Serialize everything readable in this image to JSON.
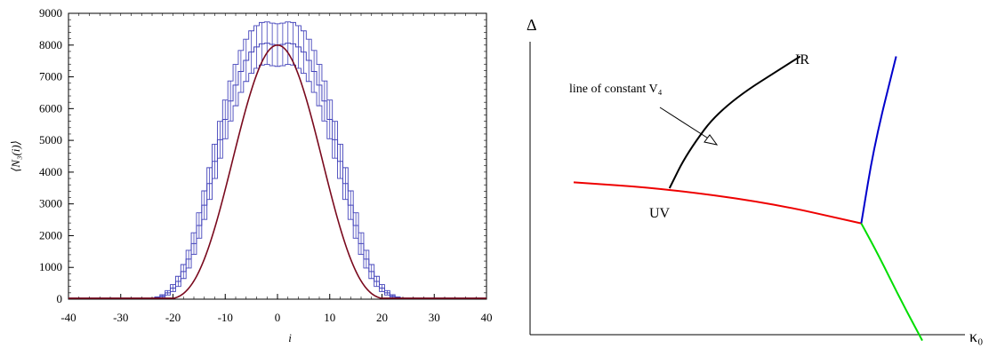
{
  "chart_data": [
    {
      "type": "histogram",
      "xlabel": "i",
      "ylabel": "⟨N₃(i)⟩",
      "xlim": [
        -40,
        40
      ],
      "ylim": [
        0,
        9000
      ],
      "x_ticks": [
        -40,
        -30,
        -20,
        -10,
        0,
        10,
        20,
        30,
        40
      ],
      "y_ticks": [
        0,
        1000,
        2000,
        3000,
        4000,
        5000,
        6000,
        7000,
        8000,
        9000
      ],
      "grid": false,
      "colors": {
        "histogram": "#4444bb",
        "fit": "#7a0a1e"
      },
      "series": [
        {
          "kind": "histogram-with-errorbars",
          "x": [
            -40,
            -39,
            -38,
            -37,
            -36,
            -35,
            -34,
            -33,
            -32,
            -31,
            -30,
            -29,
            -28,
            -27,
            -26,
            -25,
            -24,
            -23,
            -22,
            -21,
            -20,
            -19,
            -18,
            -17,
            -16,
            -15,
            -14,
            -13,
            -12,
            -11,
            -10,
            -9,
            -8,
            -7,
            -6,
            -5,
            -4,
            -3,
            -2,
            -1,
            0,
            1,
            2,
            3,
            4,
            5,
            6,
            7,
            8,
            9,
            10,
            11,
            12,
            13,
            14,
            15,
            16,
            17,
            18,
            19,
            20,
            21,
            22,
            23,
            24,
            25,
            26,
            27,
            28,
            29,
            30,
            31,
            32,
            33,
            34,
            35,
            36,
            37,
            38,
            39,
            40
          ],
          "values": [
            30,
            30,
            30,
            30,
            30,
            30,
            30,
            30,
            30,
            30,
            30,
            30,
            30,
            30,
            30,
            30,
            30,
            50,
            100,
            200,
            350,
            560,
            870,
            1260,
            1750,
            2320,
            2960,
            3640,
            4340,
            5020,
            5660,
            6240,
            6740,
            7170,
            7520,
            7780,
            7940,
            8040,
            8060,
            8020,
            8000,
            8020,
            8060,
            8040,
            7940,
            7780,
            7520,
            7170,
            6740,
            6240,
            5660,
            5020,
            4340,
            3640,
            2960,
            2320,
            1750,
            1260,
            870,
            560,
            350,
            200,
            100,
            50,
            30,
            30,
            30,
            30,
            30,
            30,
            30,
            30,
            30,
            30,
            30,
            30,
            30,
            30,
            30,
            30,
            30
          ],
          "errors": [
            0,
            0,
            0,
            0,
            0,
            0,
            0,
            0,
            0,
            0,
            0,
            0,
            0,
            0,
            0,
            0,
            0,
            20,
            40,
            70,
            110,
            160,
            220,
            280,
            340,
            400,
            450,
            500,
            540,
            580,
            610,
            630,
            650,
            660,
            665,
            668,
            670,
            670,
            670,
            670,
            670,
            670,
            670,
            670,
            670,
            668,
            665,
            660,
            650,
            630,
            610,
            580,
            540,
            500,
            450,
            400,
            340,
            280,
            220,
            160,
            110,
            70,
            40,
            20,
            0,
            0,
            0,
            0,
            0,
            0,
            0,
            0,
            0,
            0,
            0,
            0,
            0,
            0,
            0,
            0,
            0
          ]
        },
        {
          "kind": "fit-curve",
          "peak": 8000,
          "support": [
            -22,
            22
          ],
          "baseline": 30
        }
      ]
    },
    {
      "type": "phase-diagram",
      "xlabel": "κ₀",
      "ylabel": "Δ",
      "annotations": {
        "uv": "UV",
        "ir": "IR",
        "constant_line": "line of constant V₄"
      },
      "colors": {
        "red_line": "#ee0000",
        "blue_line": "#0000cc",
        "green_line": "#00dd00",
        "black_line": "#000000"
      },
      "lines": [
        {
          "name": "red",
          "points": [
            [
              0.1,
              0.52
            ],
            [
              0.3,
              0.5
            ],
            [
              0.55,
              0.45
            ],
            [
              0.76,
              0.38
            ]
          ]
        },
        {
          "name": "blue",
          "points": [
            [
              0.76,
              0.38
            ],
            [
              0.79,
              0.65
            ],
            [
              0.84,
              0.95
            ]
          ]
        },
        {
          "name": "green",
          "points": [
            [
              0.76,
              0.38
            ],
            [
              0.8,
              0.27
            ],
            [
              0.85,
              0.12
            ],
            [
              0.9,
              -0.02
            ]
          ]
        },
        {
          "name": "black",
          "points": [
            [
              0.32,
              0.5
            ],
            [
              0.36,
              0.62
            ],
            [
              0.44,
              0.78
            ],
            [
              0.62,
              0.95
            ]
          ]
        }
      ]
    }
  ]
}
